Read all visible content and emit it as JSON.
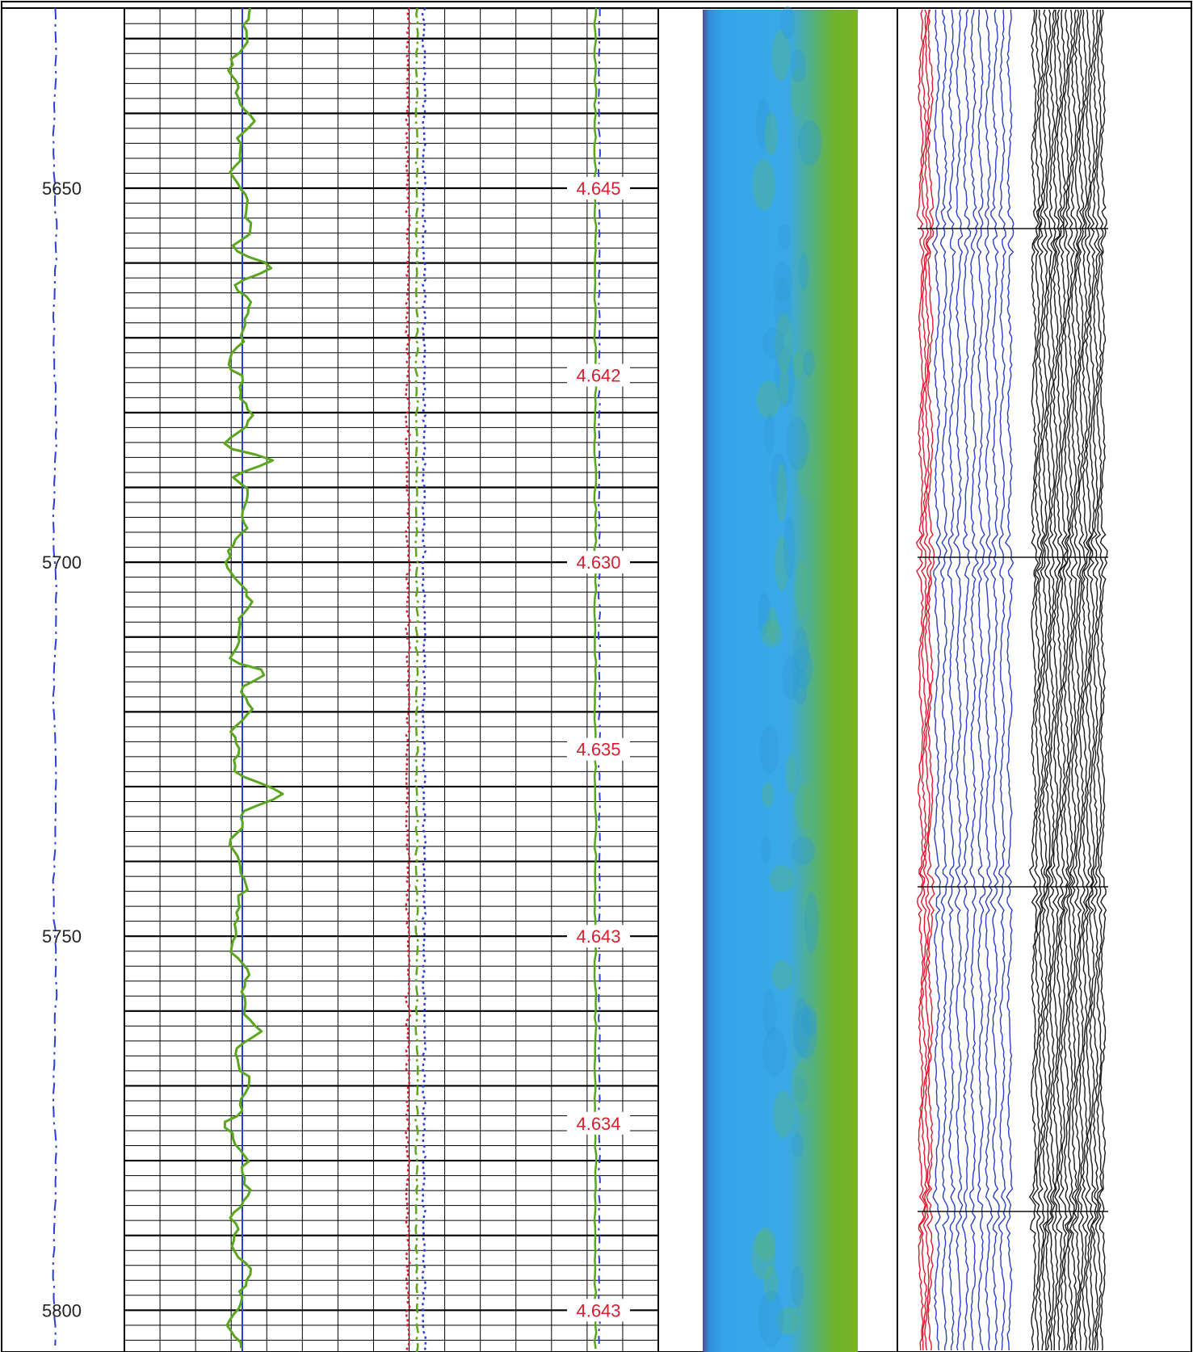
{
  "chart_data": {
    "type": "line",
    "depth_ticks": [
      {
        "depth": 5650,
        "label": "5650"
      },
      {
        "depth": 5700,
        "label": "5700"
      },
      {
        "depth": 5750,
        "label": "5750"
      },
      {
        "depth": 5800,
        "label": "5800"
      }
    ],
    "annotations": [
      {
        "depth": 5650,
        "label": "4.645"
      },
      {
        "depth": 5675,
        "label": "4.642"
      },
      {
        "depth": 5700,
        "label": "4.630"
      },
      {
        "depth": 5725,
        "label": "4.635"
      },
      {
        "depth": 5750,
        "label": "4.643"
      },
      {
        "depth": 5775,
        "label": "4.634"
      },
      {
        "depth": 5800,
        "label": "4.643"
      }
    ],
    "depth_range": [
      5626,
      5806
    ],
    "colors": {
      "grid": "#000000",
      "gamma_curve": "#5aa61e",
      "baseline": "#2b3fd6",
      "red_curve": "#e0182d",
      "label_text": "#d81f2e",
      "image_blue": "#36a6ec",
      "image_green": "#6fb32a",
      "trace_red": "#e0182d",
      "trace_blue": "#2d40c8",
      "trace_black": "#1a1a1a"
    }
  }
}
